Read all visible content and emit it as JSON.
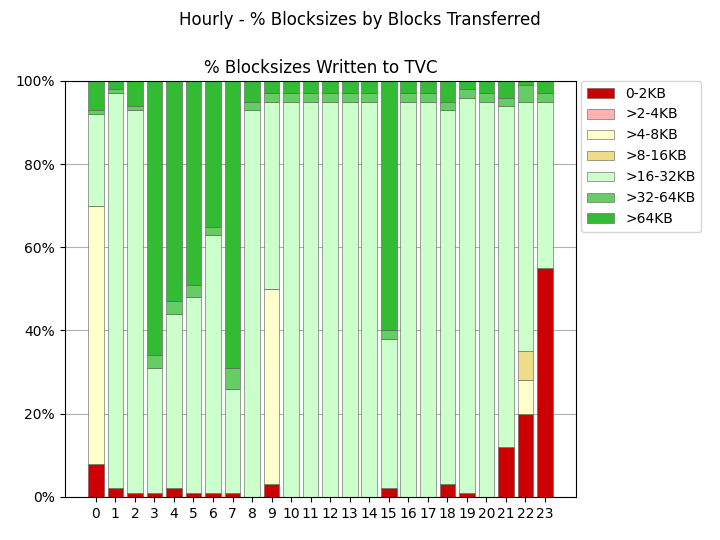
{
  "chart_data": {
    "type": "bar",
    "stacked": true,
    "title": "% Blocksizes Written to TVC",
    "subtitle": "Hourly - % Blocksizes by Blocks Transferred",
    "categories": [
      "0",
      "1",
      "2",
      "3",
      "4",
      "5",
      "6",
      "7",
      "8",
      "9",
      "10",
      "11",
      "12",
      "13",
      "14",
      "15",
      "16",
      "17",
      "18",
      "19",
      "20",
      "21",
      "22",
      "23"
    ],
    "series": [
      {
        "name": "0-2KB",
        "color": "#cc0000",
        "values": [
          8,
          2,
          1,
          1,
          2,
          1,
          1,
          1,
          0,
          3,
          0,
          0,
          0,
          0,
          0,
          2,
          0,
          0,
          3,
          1,
          0,
          12,
          20,
          55
        ]
      },
      {
        "name": ">2-4KB",
        "color": "#ffb0b0",
        "values": [
          0,
          0,
          0,
          0,
          0,
          0,
          0,
          0,
          0,
          0,
          0,
          0,
          0,
          0,
          0,
          0,
          0,
          0,
          0,
          0,
          0,
          0,
          0,
          0
        ]
      },
      {
        "name": ">4-8KB",
        "color": "#ffffcc",
        "values": [
          62,
          0,
          0,
          0,
          0,
          0,
          0,
          0,
          0,
          47,
          0,
          0,
          0,
          0,
          0,
          0,
          0,
          0,
          0,
          0,
          0,
          0,
          8,
          0
        ]
      },
      {
        "name": ">8-16KB",
        "color": "#eedd88",
        "values": [
          0,
          0,
          0,
          0,
          0,
          0,
          0,
          0,
          0,
          0,
          0,
          0,
          0,
          0,
          0,
          0,
          0,
          0,
          0,
          0,
          0,
          0,
          7,
          0
        ]
      },
      {
        "name": ">16-32KB",
        "color": "#ccffcc",
        "values": [
          22,
          95,
          92,
          30,
          42,
          47,
          62,
          25,
          93,
          45,
          95,
          95,
          95,
          95,
          95,
          36,
          95,
          95,
          90,
          95,
          95,
          82,
          60,
          40
        ]
      },
      {
        "name": ">32-64KB",
        "color": "#66cc66",
        "values": [
          1,
          1,
          1,
          3,
          3,
          3,
          2,
          5,
          2,
          2,
          2,
          2,
          2,
          2,
          2,
          2,
          2,
          2,
          2,
          2,
          2,
          2,
          4,
          2
        ]
      },
      {
        "name": ">64KB",
        "color": "#33bb33",
        "values": [
          7,
          2,
          6,
          66,
          53,
          49,
          35,
          69,
          5,
          3,
          3,
          3,
          3,
          3,
          3,
          60,
          3,
          3,
          5,
          2,
          3,
          4,
          1,
          3
        ]
      }
    ],
    "ylim": [
      0,
      100
    ],
    "yticks": [
      {
        "value": 0,
        "label": "0%"
      },
      {
        "value": 20,
        "label": "20%"
      },
      {
        "value": 40,
        "label": "40%"
      },
      {
        "value": 60,
        "label": "60%"
      },
      {
        "value": 80,
        "label": "80%"
      },
      {
        "value": 100,
        "label": "100%"
      }
    ],
    "grid": true,
    "legend": "upper left"
  }
}
